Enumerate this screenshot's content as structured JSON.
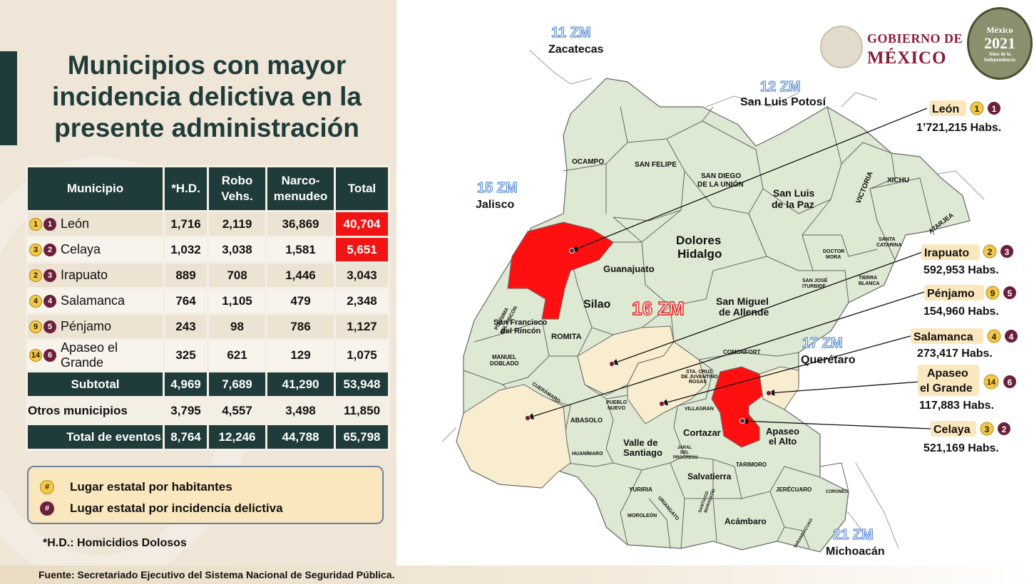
{
  "title": "Municipios con mayor incidencia delictiva en la presente administración",
  "table": {
    "headers": [
      "Municipio",
      "*H.D.",
      "Robo Vehs.",
      "Narco-menudeo",
      "Total"
    ],
    "rows": [
      {
        "pop_rank": "1",
        "crime_rank": "1",
        "name": "León",
        "hd": "1,716",
        "robo": "2,119",
        "narco": "36,869",
        "total": "40,704"
      },
      {
        "pop_rank": "3",
        "crime_rank": "2",
        "name": "Celaya",
        "hd": "1,032",
        "robo": "3,038",
        "narco": "1,581",
        "total": "5,651"
      },
      {
        "pop_rank": "2",
        "crime_rank": "3",
        "name": "Irapuato",
        "hd": "889",
        "robo": "708",
        "narco": "1,446",
        "total": "3,043"
      },
      {
        "pop_rank": "4",
        "crime_rank": "4",
        "name": "Salamanca",
        "hd": "764",
        "robo": "1,105",
        "narco": "479",
        "total": "2,348"
      },
      {
        "pop_rank": "9",
        "crime_rank": "5",
        "name": "Pénjamo",
        "hd": "243",
        "robo": "98",
        "narco": "786",
        "total": "1,127"
      },
      {
        "pop_rank": "14",
        "crime_rank": "6",
        "name": "Apaseo el Grande",
        "hd": "325",
        "robo": "621",
        "narco": "129",
        "total": "1,075"
      }
    ],
    "subtotal": {
      "label": "Subtotal",
      "hd": "4,969",
      "robo": "7,689",
      "narco": "41,290",
      "total": "53,948"
    },
    "otros": {
      "label": "Otros municipios",
      "hd": "3,795",
      "robo": "4,557",
      "narco": "3,498",
      "total": "11,850"
    },
    "total_eventos": {
      "label": "Total de eventos",
      "hd": "8,764",
      "robo": "12,246",
      "narco": "44,788",
      "total": "65,798"
    }
  },
  "legend": {
    "symbol": "#",
    "pop_label": "Lugar estatal por habitantes",
    "crime_label": "Lugar estatal por incidencia delictiva"
  },
  "footnote": "*H.D.: Homicidios Dolosos",
  "source": "Fuente:  Secretariado Ejecutivo del Sistema Nacional de Seguridad Pública.",
  "logo": {
    "line1": "GOBIERNO DE",
    "line2": "MÉXICO",
    "emblem_l1": "México",
    "emblem_year": "2021",
    "emblem_l3": "Años de la Independencia"
  },
  "map": {
    "neighbors": {
      "zac": {
        "zm": "11 ZM",
        "state": "Zacatecas"
      },
      "slp": {
        "zm": "12 ZM",
        "state": "San Luis Potosí"
      },
      "jal": {
        "zm": "15 ZM",
        "state": "Jalisco"
      },
      "gto": {
        "zm": "16 ZM"
      },
      "qro": {
        "zm": "17 ZM",
        "state": "Querétaro"
      },
      "mich": {
        "zm": "21 ZM",
        "state": "Michoacán"
      }
    },
    "labels": {
      "ocampo": "OCAMPO",
      "san_felipe": "SAN FELIPE",
      "san_diego_1": "SAN DIEGO",
      "san_diego_2": "DE LA UNIÓN",
      "slp_paz_1": "San Luis",
      "slp_paz_2": "de la Paz",
      "victoria": "VICTORIA",
      "xichu": "XICHU",
      "atarjea": "ATARJEA",
      "santa_catarina_1": "SANTA",
      "santa_catarina_2": "CATARINA",
      "doctor_mora_1": "DOCTOR",
      "doctor_mora_2": "MORA",
      "tierra_blanca_1": "TIERRA",
      "tierra_blanca_2": "BLANCA",
      "san_jose_1": "SAN JOSÉ",
      "san_jose_2": "ITURBIDE",
      "dolores_1": "Dolores",
      "dolores_2": "Hidalgo",
      "guanajuato": "Guanajuato",
      "silao": "Silao",
      "purisima_1": "PURÍSIMA",
      "purisima_2": "DEL RINCÓN",
      "sfr_1": "San Francisco",
      "sfr_2": "del Rincón",
      "romita": "ROMITA",
      "sma_1": "San Miguel",
      "sma_2": "de Allende",
      "comonfort": "COMONFORT",
      "manuel_1": "MANUEL",
      "manuel_2": "DOBLADO",
      "cueramaro": "CUERÁMARO",
      "sc_1": "STA. CRUZ",
      "sc_2": "DE JUVENTINO",
      "sc_3": "ROSAS",
      "pueblo_1": "PUEBLO",
      "pueblo_2": "NUEVO",
      "villagran": "VILLAGRÁN",
      "abasolo": "ABASOLO",
      "huanimaro": "HUANÍMARO",
      "valle_1": "Valle de",
      "valle_2": "Santiago",
      "cortazar": "Cortazar",
      "jaral_1": "JARAL",
      "jaral_2": "DEL",
      "jaral_3": "PROGRESO",
      "apaseo_alto_1": "Apaseo",
      "apaseo_alto_2": "el Alto",
      "tarimoro": "TARIMORO",
      "salvatierra": "Salvatierra",
      "yuriria": "YURIRIA",
      "uriangato": "URIANGATO",
      "moroleon": "MOROLEÓN",
      "santiago_mar_1": "SANTIAGO",
      "santiago_mar_2": "MARAVATÍO",
      "jerecuaro": "JERÉCUARO",
      "coroneo": "CORONEO",
      "acambaro": "Acámbaro",
      "tarandacuao": "TARANDACUAO"
    },
    "callouts": [
      {
        "name": "León",
        "pop_rank": "1",
        "crime_rank": "1",
        "habs": "1’721,215 Habs."
      },
      {
        "name": "Irapuato",
        "pop_rank": "2",
        "crime_rank": "3",
        "habs": "592,953 Habs."
      },
      {
        "name": "Pénjamo",
        "pop_rank": "9",
        "crime_rank": "5",
        "habs": "154,960 Habs."
      },
      {
        "name": "Salamanca",
        "pop_rank": "4",
        "crime_rank": "4",
        "habs": "273,417 Habs."
      },
      {
        "name_1": "Apaseo",
        "name_2": "el Grande",
        "pop_rank": "14",
        "crime_rank": "6",
        "habs": "117,883 Habs."
      },
      {
        "name": "Celaya",
        "pop_rank": "3",
        "crime_rank": "2",
        "habs": "521,169 Habs."
      }
    ],
    "colors": {
      "base": "#dde9d3",
      "highlight_red": "#ff1010",
      "highlight_tan": "#f9edd0",
      "border": "#666666",
      "zm_blue": "#5b8fd6"
    }
  }
}
